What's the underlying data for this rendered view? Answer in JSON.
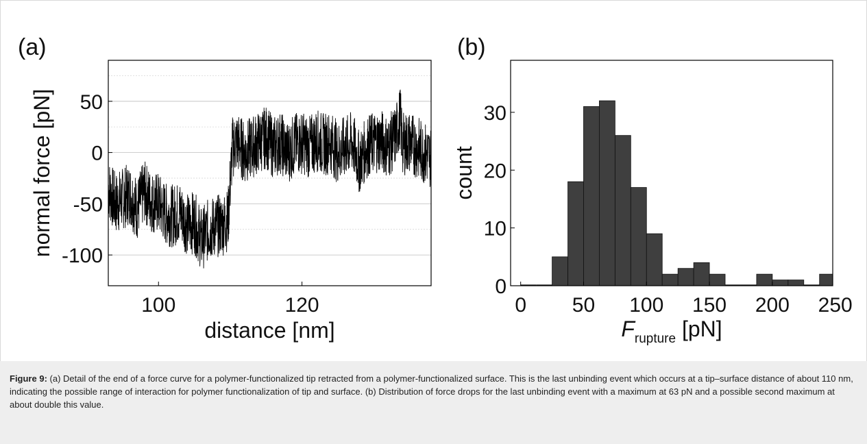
{
  "panel_labels": {
    "a": "(a)",
    "b": "(b)"
  },
  "chart_data": [
    {
      "type": "line",
      "panel": "(a)",
      "xlabel": "distance [nm]",
      "ylabel": "normal force [pN]",
      "xlim": [
        93,
        138
      ],
      "ylim": [
        -130,
        90
      ],
      "xticks": [
        100,
        120
      ],
      "yticks": [
        50,
        0,
        -50,
        -100
      ],
      "grid": true,
      "x": [
        93.0,
        94.0,
        95.0,
        96.0,
        97.0,
        98.0,
        99.0,
        100.0,
        101.0,
        102.0,
        103.0,
        104.0,
        105.0,
        106.0,
        107.0,
        108.0,
        109.0,
        109.7,
        110.3,
        111.0,
        112.0,
        113.0,
        114.0,
        115.0,
        116.0,
        117.0,
        118.0,
        119.0,
        120.0,
        121.0,
        122.0,
        123.0,
        124.0,
        125.0,
        126.0,
        127.0,
        128.0,
        129.0,
        130.0,
        131.0,
        132.0,
        133.0,
        133.7,
        134.0,
        135.0,
        136.0,
        137.0,
        138.0
      ],
      "y": [
        -35,
        -50,
        -45,
        -40,
        -55,
        -38,
        -48,
        -50,
        -60,
        -62,
        -58,
        -70,
        -68,
        -85,
        -75,
        -72,
        -70,
        -65,
        5,
        10,
        0,
        5,
        10,
        15,
        5,
        10,
        0,
        8,
        10,
        5,
        12,
        8,
        10,
        0,
        5,
        10,
        -10,
        5,
        10,
        12,
        5,
        15,
        35,
        8,
        10,
        5,
        0,
        -5
      ]
    },
    {
      "type": "bar",
      "panel": "(b)",
      "xlabel_main": "F",
      "xlabel_sub": "rupture",
      "xlabel_unit": " [pN]",
      "ylabel": "count",
      "xlim": [
        -8,
        248
      ],
      "ylim": [
        0,
        39
      ],
      "xticks": [
        0,
        50,
        100,
        150,
        200,
        250
      ],
      "yticks": [
        0,
        10,
        20,
        30
      ],
      "bin_width": 12.5,
      "bins_left": [
        0,
        12.5,
        25,
        37.5,
        50,
        62.5,
        75,
        87.5,
        100,
        112.5,
        125,
        137.5,
        150,
        162.5,
        175,
        187.5,
        200,
        212.5,
        225,
        237.5
      ],
      "values": [
        0,
        0,
        5,
        18,
        31,
        32,
        26,
        17,
        9,
        2,
        3,
        4,
        2,
        0,
        0,
        2,
        1,
        1,
        0,
        2
      ]
    }
  ],
  "caption": {
    "label": "Figure 9:",
    "text": " (a) Detail of the end of a force curve for a polymer-functionalized tip retracted from a polymer-functionalized surface. This is the last unbinding event which occurs at a tip–surface distance of about 110 nm, indicating the possible range of interaction for polymer functionalization of tip and surface. (b) Distribution of force drops for the last unbinding event with a maximum at 63 pN and a possible second maximum at about double this value."
  }
}
